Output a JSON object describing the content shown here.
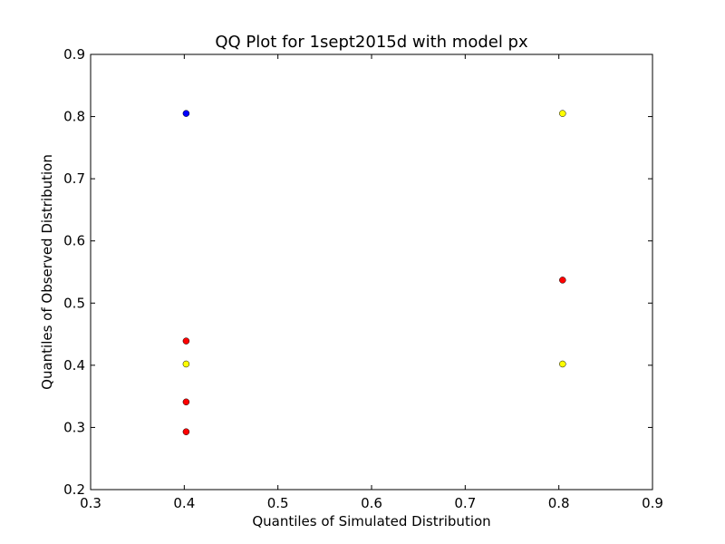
{
  "chart_data": {
    "type": "scatter",
    "title": "QQ Plot for 1sept2015d with model px",
    "xlabel": "Quantiles of Simulated Distribution",
    "ylabel": "Quantiles of Observed Distribution",
    "xlim": [
      0.3,
      0.9
    ],
    "ylim": [
      0.2,
      0.9
    ],
    "xticks": [
      "0.3",
      "0.4",
      "0.5",
      "0.6",
      "0.7",
      "0.8",
      "0.9"
    ],
    "yticks": [
      "0.2",
      "0.3",
      "0.4",
      "0.5",
      "0.6",
      "0.7",
      "0.8",
      "0.9"
    ],
    "grid": false,
    "series": [
      {
        "color": "#0000ff",
        "points": [
          {
            "x": 0.402,
            "y": 0.805
          }
        ]
      },
      {
        "color": "#ff0000",
        "points": [
          {
            "x": 0.402,
            "y": 0.439
          },
          {
            "x": 0.402,
            "y": 0.341
          },
          {
            "x": 0.402,
            "y": 0.293
          },
          {
            "x": 0.804,
            "y": 0.537
          }
        ]
      },
      {
        "color": "#ffff00",
        "points": [
          {
            "x": 0.402,
            "y": 0.402
          },
          {
            "x": 0.804,
            "y": 0.805
          },
          {
            "x": 0.804,
            "y": 0.402
          }
        ]
      }
    ]
  }
}
